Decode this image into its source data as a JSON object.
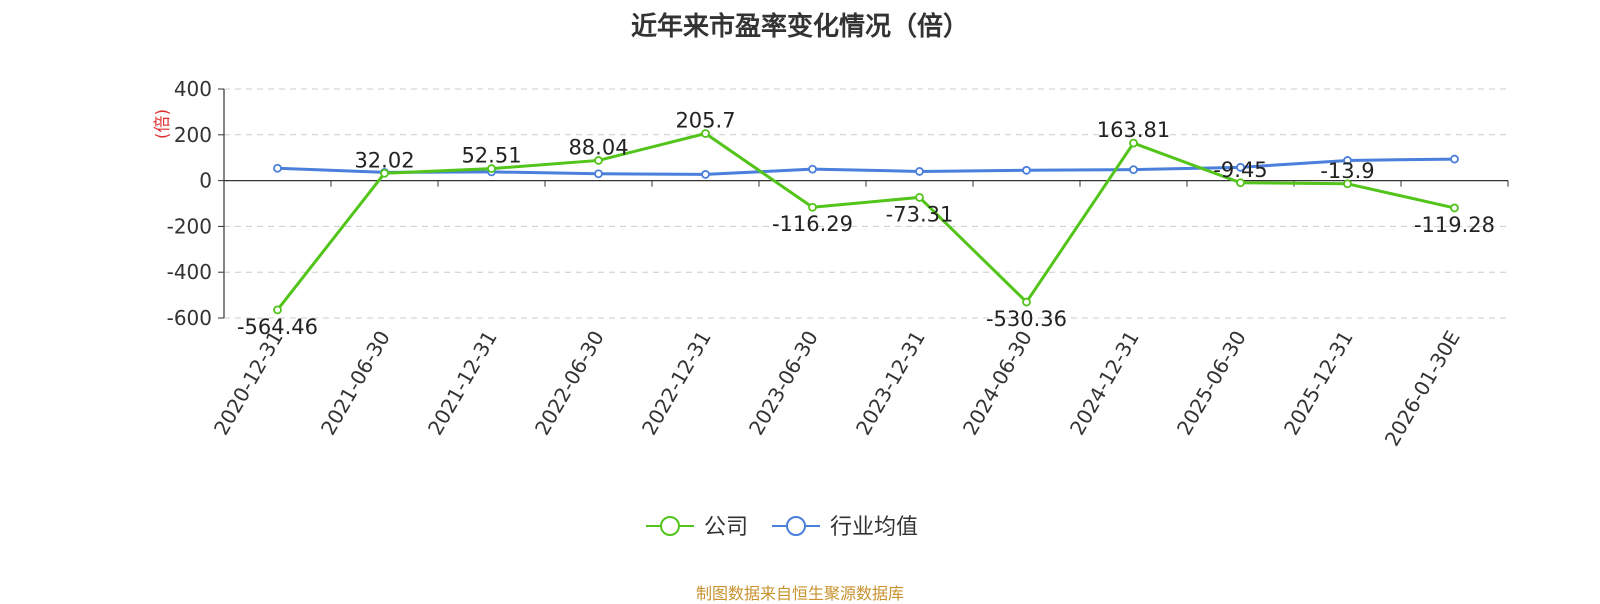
{
  "chart_data": {
    "type": "line",
    "title": "近年来市盈率变化情况（倍）",
    "ylabel": "(倍)",
    "xlabel": "",
    "ylim": [
      -600,
      400
    ],
    "yticks": [
      400,
      200,
      0,
      -200,
      -400,
      -600
    ],
    "grid": true,
    "legend_position": "bottom-center",
    "categories": [
      "2020-12-31",
      "2021-06-30",
      "2021-12-31",
      "2022-06-30",
      "2022-12-31",
      "2023-06-30",
      "2023-12-31",
      "2024-06-30",
      "2024-12-31",
      "2025-06-30",
      "2025-12-31",
      "2026-01-30E"
    ],
    "series": [
      {
        "name": "公司",
        "color": "#52c41a",
        "values": [
          -564.46,
          32.02,
          52.51,
          88.04,
          205.7,
          -116.29,
          -73.31,
          -530.36,
          163.81,
          -9.45,
          -13.9,
          -119.28
        ],
        "labels": [
          "-564.46",
          "32.02",
          "52.51",
          "88.04",
          "205.7",
          "-116.29",
          "-73.31",
          "-530.36",
          "163.81",
          "-9.45",
          "-13.9",
          "-119.28"
        ]
      },
      {
        "name": "行业均值",
        "color": "#4a7fdb",
        "values": [
          54,
          36,
          38,
          30,
          27,
          50,
          40,
          45,
          48,
          58,
          88,
          94
        ]
      }
    ]
  },
  "footer": {
    "source": "制图数据来自恒生聚源数据库"
  },
  "colors": {
    "axis": "#333333",
    "grid": "#cccccc",
    "ylabel": "#e03030",
    "source": "#c8922e"
  }
}
